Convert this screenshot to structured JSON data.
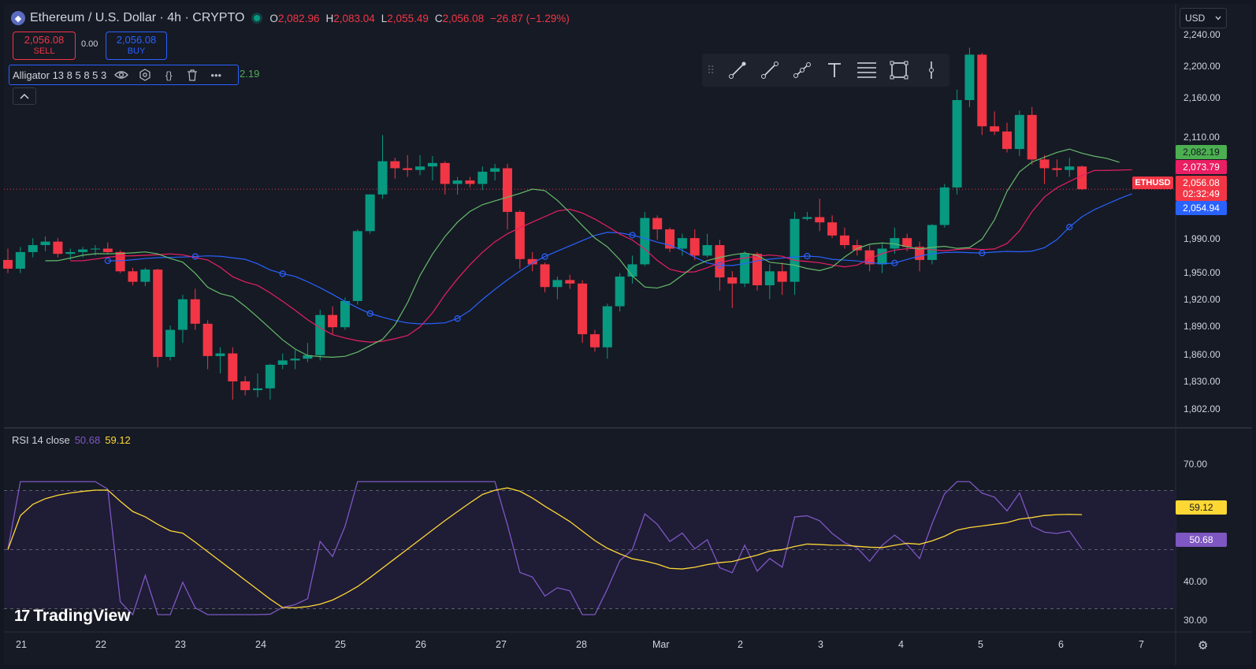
{
  "header": {
    "symbol_title": "Ethereum / U.S. Dollar · 4h · CRYPTO",
    "open_key": "O",
    "open": "2,082.96",
    "high_key": "H",
    "high": "2,083.04",
    "low_key": "L",
    "low": "2,055.49",
    "close_key": "C",
    "close": "2,056.08",
    "change": "−26.87 (−1.29%)"
  },
  "trade": {
    "sell_price": "2,056.08",
    "sell_label": "SELL",
    "spread": "0.00",
    "buy_price": "2,056.08",
    "buy_label": "BUY"
  },
  "indicator": {
    "label": "Alligator 13 8 5 8 5 3",
    "value": "2.19"
  },
  "currency": "USD",
  "rsi": {
    "label": "RSI 14 close",
    "value1": "50.68",
    "value2": "59.12"
  },
  "logo": "TradingView",
  "price_axis": [
    "2,240.00",
    "2,200.00",
    "2,160.00",
    "2,110.00",
    "1,990.00",
    "1,950.00",
    "1,920.00",
    "1,890.00",
    "1,860.00",
    "1,830.00",
    "1,802.00"
  ],
  "rsi_axis": [
    "70.00",
    "40.00",
    "30.00"
  ],
  "tags": {
    "green": "2,082.19",
    "red": "2,073.79",
    "current": "2,056.08",
    "countdown": "02:32:49",
    "blue": "2,054.94",
    "symbol": "ETHUSD",
    "rsi_ma": "59.12",
    "rsi_val": "50.68"
  },
  "time_axis": [
    "21",
    "22",
    "23",
    "24",
    "25",
    "26",
    "27",
    "28",
    "Mar",
    "2",
    "3",
    "4",
    "5",
    "6",
    "7"
  ],
  "colors": {
    "up": "#089981",
    "down": "#f23645",
    "jaw": "#2962ff",
    "teeth": "#e91e63",
    "lips": "#66bb6a",
    "rsi": "#7e57c2",
    "rsi_ma": "#fdd835"
  },
  "chart_data": {
    "type": "candlestick",
    "timeframe": "4h",
    "ylim": [
      1790,
      2250
    ],
    "candles": [
      [
        1975,
        1988,
        1960,
        1965
      ],
      [
        1965,
        1990,
        1960,
        1984
      ],
      [
        1984,
        2000,
        1978,
        1992
      ],
      [
        1992,
        2002,
        1985,
        1996
      ],
      [
        1996,
        2000,
        1978,
        1982
      ],
      [
        1982,
        1988,
        1975,
        1984
      ],
      [
        1984,
        1990,
        1978,
        1987
      ],
      [
        1987,
        1992,
        1980,
        1988
      ],
      [
        1988,
        1995,
        1982,
        1984
      ],
      [
        1984,
        1986,
        1960,
        1962
      ],
      [
        1962,
        1966,
        1946,
        1950
      ],
      [
        1950,
        1966,
        1945,
        1964
      ],
      [
        1964,
        1965,
        1852,
        1864
      ],
      [
        1864,
        1900,
        1860,
        1895
      ],
      [
        1895,
        1935,
        1880,
        1930
      ],
      [
        1930,
        1942,
        1895,
        1902
      ],
      [
        1902,
        1906,
        1850,
        1865
      ],
      [
        1865,
        1875,
        1845,
        1868
      ],
      [
        1868,
        1875,
        1815,
        1836
      ],
      [
        1836,
        1842,
        1820,
        1826
      ],
      [
        1826,
        1845,
        1818,
        1828
      ],
      [
        1828,
        1856,
        1815,
        1855
      ],
      [
        1855,
        1868,
        1850,
        1860
      ],
      [
        1860,
        1872,
        1850,
        1862
      ],
      [
        1862,
        1880,
        1858,
        1866
      ],
      [
        1866,
        1918,
        1860,
        1912
      ],
      [
        1912,
        1922,
        1890,
        1898
      ],
      [
        1898,
        1932,
        1895,
        1928
      ],
      [
        1928,
        2010,
        1924,
        2008
      ],
      [
        2008,
        2050,
        2005,
        2050
      ],
      [
        2050,
        2118,
        2045,
        2088
      ],
      [
        2088,
        2092,
        2068,
        2080
      ],
      [
        2080,
        2095,
        2070,
        2078
      ],
      [
        2078,
        2095,
        2072,
        2082
      ],
      [
        2082,
        2094,
        2066,
        2086
      ],
      [
        2086,
        2088,
        2050,
        2062
      ],
      [
        2062,
        2070,
        2050,
        2066
      ],
      [
        2066,
        2070,
        2058,
        2062
      ],
      [
        2062,
        2082,
        2055,
        2076
      ],
      [
        2076,
        2085,
        2066,
        2080
      ],
      [
        2080,
        2085,
        2010,
        2030
      ],
      [
        2030,
        2032,
        1965,
        1976
      ],
      [
        1976,
        1984,
        1962,
        1970
      ],
      [
        1970,
        1972,
        1938,
        1944
      ],
      [
        1944,
        1956,
        1930,
        1952
      ],
      [
        1952,
        1958,
        1942,
        1948
      ],
      [
        1948,
        1952,
        1880,
        1890
      ],
      [
        1890,
        1895,
        1870,
        1875
      ],
      [
        1875,
        1925,
        1862,
        1922
      ],
      [
        1922,
        1960,
        1916,
        1956
      ],
      [
        1956,
        1980,
        1948,
        1970
      ],
      [
        1970,
        2030,
        1968,
        2023
      ],
      [
        2023,
        2026,
        1998,
        2010
      ],
      [
        2010,
        2012,
        1984,
        1988
      ],
      [
        1988,
        2005,
        1980,
        2000
      ],
      [
        2000,
        2010,
        1975,
        1980
      ],
      [
        1980,
        2005,
        1978,
        1992
      ],
      [
        1992,
        1998,
        1940,
        1955
      ],
      [
        1955,
        1962,
        1920,
        1948
      ],
      [
        1948,
        1985,
        1944,
        1982
      ],
      [
        1982,
        1984,
        1940,
        1946
      ],
      [
        1946,
        1970,
        1930,
        1962
      ],
      [
        1962,
        1972,
        1935,
        1950
      ],
      [
        1950,
        2030,
        1935,
        2022
      ],
      [
        2022,
        2030,
        2020,
        2024
      ],
      [
        2024,
        2045,
        2008,
        2018
      ],
      [
        2018,
        2026,
        2000,
        2003
      ],
      [
        2003,
        2012,
        1988,
        1992
      ],
      [
        1992,
        1998,
        1980,
        1986
      ],
      [
        1986,
        1992,
        1962,
        1970
      ],
      [
        1970,
        1995,
        1960,
        1988
      ],
      [
        1988,
        2012,
        1982,
        2000
      ],
      [
        2000,
        2005,
        1985,
        1990
      ],
      [
        1990,
        1996,
        1962,
        1975
      ],
      [
        1975,
        2016,
        1970,
        2015
      ],
      [
        2015,
        2062,
        2012,
        2058
      ],
      [
        2058,
        2170,
        2050,
        2158
      ],
      [
        2158,
        2218,
        2150,
        2210
      ],
      [
        2210,
        2212,
        2118,
        2128
      ],
      [
        2128,
        2145,
        2118,
        2122
      ],
      [
        2122,
        2132,
        2098,
        2102
      ],
      [
        2102,
        2146,
        2094,
        2141
      ],
      [
        2141,
        2150,
        2084,
        2090
      ],
      [
        2090,
        2095,
        2062,
        2080
      ],
      [
        2080,
        2090,
        2070,
        2078
      ],
      [
        2078,
        2092,
        2070,
        2082
      ],
      [
        2082,
        2083,
        2055,
        2056
      ]
    ],
    "alligator": {
      "jaw_period": 13,
      "teeth_period": 8,
      "lips_period": 5,
      "jaw_last": 2054.94,
      "teeth_last": 2073.79,
      "lips_last": 2082.19
    },
    "rsi": {
      "period": 14,
      "range": [
        20,
        80
      ],
      "bands": [
        70,
        50,
        30
      ],
      "last": 50.68,
      "ma_last": 59.12
    }
  }
}
